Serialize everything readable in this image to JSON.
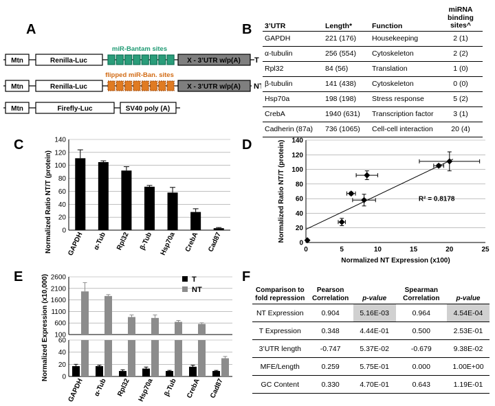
{
  "panels": {
    "A": "A",
    "B": "B",
    "C": "C",
    "D": "D",
    "E": "E",
    "F": "F"
  },
  "panelA": {
    "constructs": [
      {
        "mtn": "Mtn",
        "luc": "Renilla-Luc",
        "utr": "X - 3’UTR w/p(A)",
        "tag": "T",
        "sites_label": "miR-Bantam sites",
        "site_color": "#2a9d7a",
        "site_border": "#117055"
      },
      {
        "mtn": "Mtn",
        "luc": "Renilla-Luc",
        "utr": "X - 3’UTR w/p(A)",
        "tag": "NT",
        "sites_label": "flipped miR-Ban. sites",
        "site_color": "#e07b22",
        "site_border": "#a04a0a"
      },
      {
        "mtn": "Mtn",
        "luc": "Firefly-Luc",
        "utr": "SV40 poly (A)"
      }
    ]
  },
  "tableB": {
    "headers": [
      "3’UTR",
      "Length*",
      "Function",
      "miRNA binding sites^"
    ],
    "rows": [
      [
        "GAPDH",
        "221 (176)",
        "Housekeeping",
        "2 (1)"
      ],
      [
        "α-tubulin",
        "256 (554)",
        "Cytoskeleton",
        "2 (2)"
      ],
      [
        "Rpl32",
        "84 (56)",
        "Translation",
        "1 (0)"
      ],
      [
        "β-tubulin",
        "141 (438)",
        "Cytoskeleton",
        "0 (0)"
      ],
      [
        "Hsp70a",
        "198 (198)",
        "Stress response",
        "5 (2)"
      ],
      [
        "CrebA",
        "1940 (631)",
        "Transcription factor",
        "3 (1)"
      ],
      [
        "Cadherin (87a)",
        "736 (1065)",
        "Cell-cell interaction",
        "20 (4)"
      ]
    ]
  },
  "chart_data": [
    {
      "type": "bar",
      "panel": "C",
      "categories": [
        "GAPDH",
        "α-Tub",
        "Rpl32",
        "β-Tub",
        "Hsp70a",
        "CrebA",
        "Cad87"
      ],
      "values": [
        111,
        105,
        92,
        67,
        58,
        28,
        3
      ],
      "errors": [
        13,
        2,
        6,
        2,
        8,
        5,
        1
      ],
      "ylabel": "Normalized Ratio NT/T (protein)",
      "ylim": [
        0,
        140
      ],
      "yticks": [
        "0",
        "20",
        "40",
        "60",
        "80",
        "100",
        "120",
        "140"
      ],
      "grid": true
    },
    {
      "type": "scatter",
      "panel": "D",
      "points": [
        {
          "x": 20,
          "y": 111,
          "xerr": 4.2,
          "yerr": 13
        },
        {
          "x": 18.5,
          "y": 105,
          "xerr": 0.7,
          "yerr": 2
        },
        {
          "x": 8.5,
          "y": 92,
          "xerr": 1.5,
          "yerr": 6
        },
        {
          "x": 6.3,
          "y": 67,
          "xerr": 0.6,
          "yerr": 2
        },
        {
          "x": 8.1,
          "y": 58,
          "xerr": 1.6,
          "yerr": 8
        },
        {
          "x": 5.0,
          "y": 28,
          "xerr": 0.5,
          "yerr": 5
        },
        {
          "x": 0.2,
          "y": 3,
          "xerr": 0.1,
          "yerr": 1
        }
      ],
      "trendline": {
        "x": [
          0,
          20.5
        ],
        "y": [
          18,
          114
        ]
      },
      "annotation": "R² = 0.8178",
      "xlabel": "Normalized NT Expression (x100)",
      "ylabel": "Normalized Ratio NT/T (protein)",
      "xlim": [
        0,
        25
      ],
      "ylim": [
        0,
        140
      ],
      "xticks": [
        "0",
        "5",
        "10",
        "15",
        "20",
        "25"
      ],
      "yticks": [
        "0",
        "20",
        "40",
        "60",
        "80",
        "100",
        "120",
        "140"
      ],
      "grid": true
    },
    {
      "type": "bar",
      "panel": "E",
      "categories": [
        "GAPDH",
        "α-Tub",
        "Rpl32",
        "Hsp70a",
        "β-Tub",
        "CrebA",
        "Cad87"
      ],
      "series": [
        {
          "name": "T",
          "values": [
            17,
            17,
            9,
            13,
            9,
            16,
            9
          ],
          "errors": [
            3,
            1.5,
            2,
            2.5,
            1,
            2.5,
            1
          ],
          "color": "#000000"
        },
        {
          "name": "NT",
          "values": [
            1970,
            1770,
            860,
            820,
            650,
            560,
            30
          ],
          "errors": [
            380,
            60,
            90,
            130,
            60,
            50,
            3
          ],
          "color": "#8c8c8c"
        }
      ],
      "ylabel": "Normalized Expression (x10,000)",
      "broken_axis": {
        "lower_ylim": [
          0,
          60
        ],
        "upper_ylim": [
          100,
          2600
        ]
      },
      "lower_yticks": [
        "0",
        "20",
        "40",
        "60"
      ],
      "upper_yticks": [
        "100",
        "600",
        "1100",
        "1600",
        "2100",
        "2600"
      ],
      "legend": "top-right",
      "grid": true
    }
  ],
  "tableF": {
    "headers": [
      "Comparison to fold repression",
      "Pearson Correlation",
      "p-value",
      "Spearman Correlation",
      "p-value"
    ],
    "rows": [
      [
        "NT Expression",
        "0.904",
        "5.16E-03",
        "0.964",
        "4.54E-04"
      ],
      [
        "T Expression",
        "0.348",
        "4.44E-01",
        "0.500",
        "2.53E-01"
      ],
      [
        "3’UTR length",
        "-0.747",
        "5.37E-02",
        "-0.679",
        "9.38E-02"
      ],
      [
        "MFE/Length",
        "0.259",
        "5.75E-01",
        "0.000",
        "1.00E+00"
      ],
      [
        "GC Content",
        "0.330",
        "4.70E-01",
        "0.643",
        "1.19E-01"
      ]
    ]
  }
}
